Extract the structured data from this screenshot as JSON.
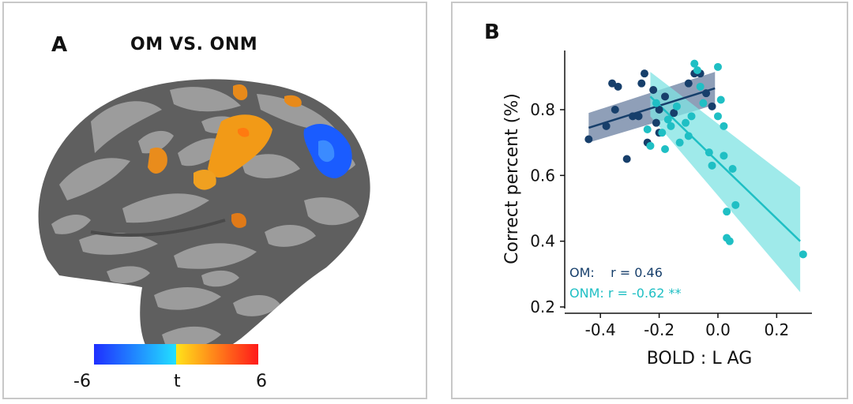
{
  "panel_a": {
    "letter": "A",
    "title": "OM VS. ONM",
    "colorbar": {
      "min_label": "-6",
      "mid_label": "t",
      "max_label": "6"
    },
    "colors": {
      "negative": "#1a5cff",
      "positive": "#f5a000",
      "brain_dark": "#5f5f5f",
      "brain_light": "#9c9c9c"
    }
  },
  "panel_b": {
    "letter": "B"
  },
  "chart_data": {
    "type": "scatter",
    "title": "",
    "xlabel": "BOLD : L AG",
    "ylabel": "Correct percent (%)",
    "xlim": [
      -0.5,
      0.32
    ],
    "ylim": [
      0.2,
      0.98
    ],
    "xticks": [
      -0.4,
      -0.2,
      0.0,
      0.2
    ],
    "xtick_labels": [
      "-0.4",
      "-0.2",
      "0.0",
      "0.2"
    ],
    "yticks": [
      0.2,
      0.4,
      0.6,
      0.8
    ],
    "ytick_labels": [
      "0.2",
      "0.4",
      "0.6",
      "0.8"
    ],
    "series": [
      {
        "name": "OM",
        "color": "#173f6b",
        "band_color": "#6a7fa0",
        "legend": "OM:    r = 0.46",
        "fit": {
          "x": [
            -0.44,
            -0.01
          ],
          "y": [
            0.745,
            0.865
          ],
          "lower": [
            0.7,
            0.815
          ],
          "upper": [
            0.79,
            0.915
          ]
        },
        "points": [
          {
            "x": -0.44,
            "y": 0.71
          },
          {
            "x": -0.38,
            "y": 0.75
          },
          {
            "x": -0.36,
            "y": 0.88
          },
          {
            "x": -0.35,
            "y": 0.8
          },
          {
            "x": -0.34,
            "y": 0.87
          },
          {
            "x": -0.31,
            "y": 0.65
          },
          {
            "x": -0.29,
            "y": 0.78
          },
          {
            "x": -0.27,
            "y": 0.78
          },
          {
            "x": -0.26,
            "y": 0.88
          },
          {
            "x": -0.25,
            "y": 0.91
          },
          {
            "x": -0.24,
            "y": 0.7
          },
          {
            "x": -0.22,
            "y": 0.86
          },
          {
            "x": -0.21,
            "y": 0.76
          },
          {
            "x": -0.2,
            "y": 0.8
          },
          {
            "x": -0.18,
            "y": 0.84
          },
          {
            "x": -0.15,
            "y": 0.79
          },
          {
            "x": -0.1,
            "y": 0.88
          },
          {
            "x": -0.08,
            "y": 0.91
          },
          {
            "x": -0.06,
            "y": 0.91
          },
          {
            "x": -0.04,
            "y": 0.85
          },
          {
            "x": -0.02,
            "y": 0.81
          },
          {
            "x": -0.2,
            "y": 0.73
          }
        ]
      },
      {
        "name": "ONM",
        "color": "#1fbfc4",
        "band_color": "#7fe3e3",
        "legend": "ONM: r = -0.62 **",
        "fit": {
          "x": [
            -0.23,
            0.28
          ],
          "y": [
            0.84,
            0.4
          ],
          "lower": [
            0.78,
            0.245
          ],
          "upper": [
            0.915,
            0.565
          ]
        },
        "points": [
          {
            "x": -0.24,
            "y": 0.74
          },
          {
            "x": -0.23,
            "y": 0.69
          },
          {
            "x": -0.21,
            "y": 0.82
          },
          {
            "x": -0.19,
            "y": 0.73
          },
          {
            "x": -0.18,
            "y": 0.68
          },
          {
            "x": -0.17,
            "y": 0.77
          },
          {
            "x": -0.16,
            "y": 0.75
          },
          {
            "x": -0.14,
            "y": 0.81
          },
          {
            "x": -0.13,
            "y": 0.7
          },
          {
            "x": -0.11,
            "y": 0.76
          },
          {
            "x": -0.1,
            "y": 0.72
          },
          {
            "x": -0.09,
            "y": 0.78
          },
          {
            "x": -0.08,
            "y": 0.94
          },
          {
            "x": -0.07,
            "y": 0.92
          },
          {
            "x": -0.06,
            "y": 0.87
          },
          {
            "x": -0.05,
            "y": 0.82
          },
          {
            "x": -0.03,
            "y": 0.67
          },
          {
            "x": -0.02,
            "y": 0.63
          },
          {
            "x": 0.0,
            "y": 0.78
          },
          {
            "x": 0.0,
            "y": 0.93
          },
          {
            "x": 0.01,
            "y": 0.83
          },
          {
            "x": 0.02,
            "y": 0.75
          },
          {
            "x": 0.03,
            "y": 0.41
          },
          {
            "x": 0.03,
            "y": 0.49
          },
          {
            "x": 0.04,
            "y": 0.4
          },
          {
            "x": 0.05,
            "y": 0.62
          },
          {
            "x": 0.06,
            "y": 0.51
          },
          {
            "x": 0.29,
            "y": 0.36
          },
          {
            "x": 0.02,
            "y": 0.66
          }
        ]
      }
    ]
  }
}
